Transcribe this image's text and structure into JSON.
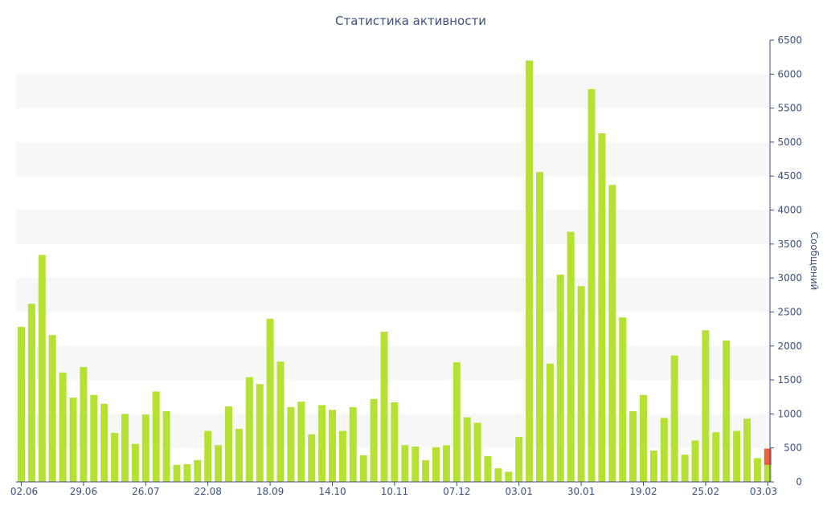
{
  "chart_data": {
    "type": "bar",
    "title": "Статистика активности",
    "ylabel": "Сообщений",
    "ylim": [
      0,
      6500
    ],
    "yticks": [
      0,
      500,
      1000,
      1500,
      2000,
      2500,
      3000,
      3500,
      4000,
      4500,
      5000,
      5500,
      6000,
      6500
    ],
    "grid": "alternating-bands",
    "y_axis_position": "right",
    "colors": {
      "bar": "#b5e135",
      "bar_highlight": "#e8603c",
      "axis": "#3f4f7f",
      "band": "#f7f7f7"
    },
    "xtick_labels": [
      {
        "label": "02.06",
        "index": 0
      },
      {
        "label": "29.06",
        "index": 6
      },
      {
        "label": "26.07",
        "index": 12
      },
      {
        "label": "22.08",
        "index": 18
      },
      {
        "label": "18.09",
        "index": 24
      },
      {
        "label": "14.10",
        "index": 30
      },
      {
        "label": "10.11",
        "index": 36
      },
      {
        "label": "07.12",
        "index": 42
      },
      {
        "label": "03.01",
        "index": 48
      },
      {
        "label": "30.01",
        "index": 54
      },
      {
        "label": "19.02",
        "index": 60
      },
      {
        "label": "25.02",
        "index": 66
      },
      {
        "label": "03.03",
        "index": 72
      }
    ],
    "values": [
      2280,
      2620,
      3340,
      2160,
      1610,
      1240,
      1690,
      1280,
      1150,
      720,
      1000,
      560,
      990,
      1330,
      1040,
      250,
      260,
      320,
      750,
      540,
      1110,
      780,
      1540,
      1440,
      2400,
      1770,
      1100,
      1180,
      700,
      1130,
      1060,
      750,
      1100,
      390,
      1220,
      2210,
      1170,
      540,
      520,
      320,
      510,
      540,
      1760,
      950,
      870,
      380,
      200,
      150,
      660,
      6200,
      4560,
      1740,
      3050,
      3680,
      2880,
      5780,
      5130,
      4370,
      2420,
      1040,
      1280,
      460,
      940,
      1860,
      400,
      610,
      2230,
      730,
      2080,
      750,
      930,
      350,
      490
    ],
    "highlight": {
      "index": 72,
      "lower": 250,
      "color": "#e8603c"
    }
  }
}
